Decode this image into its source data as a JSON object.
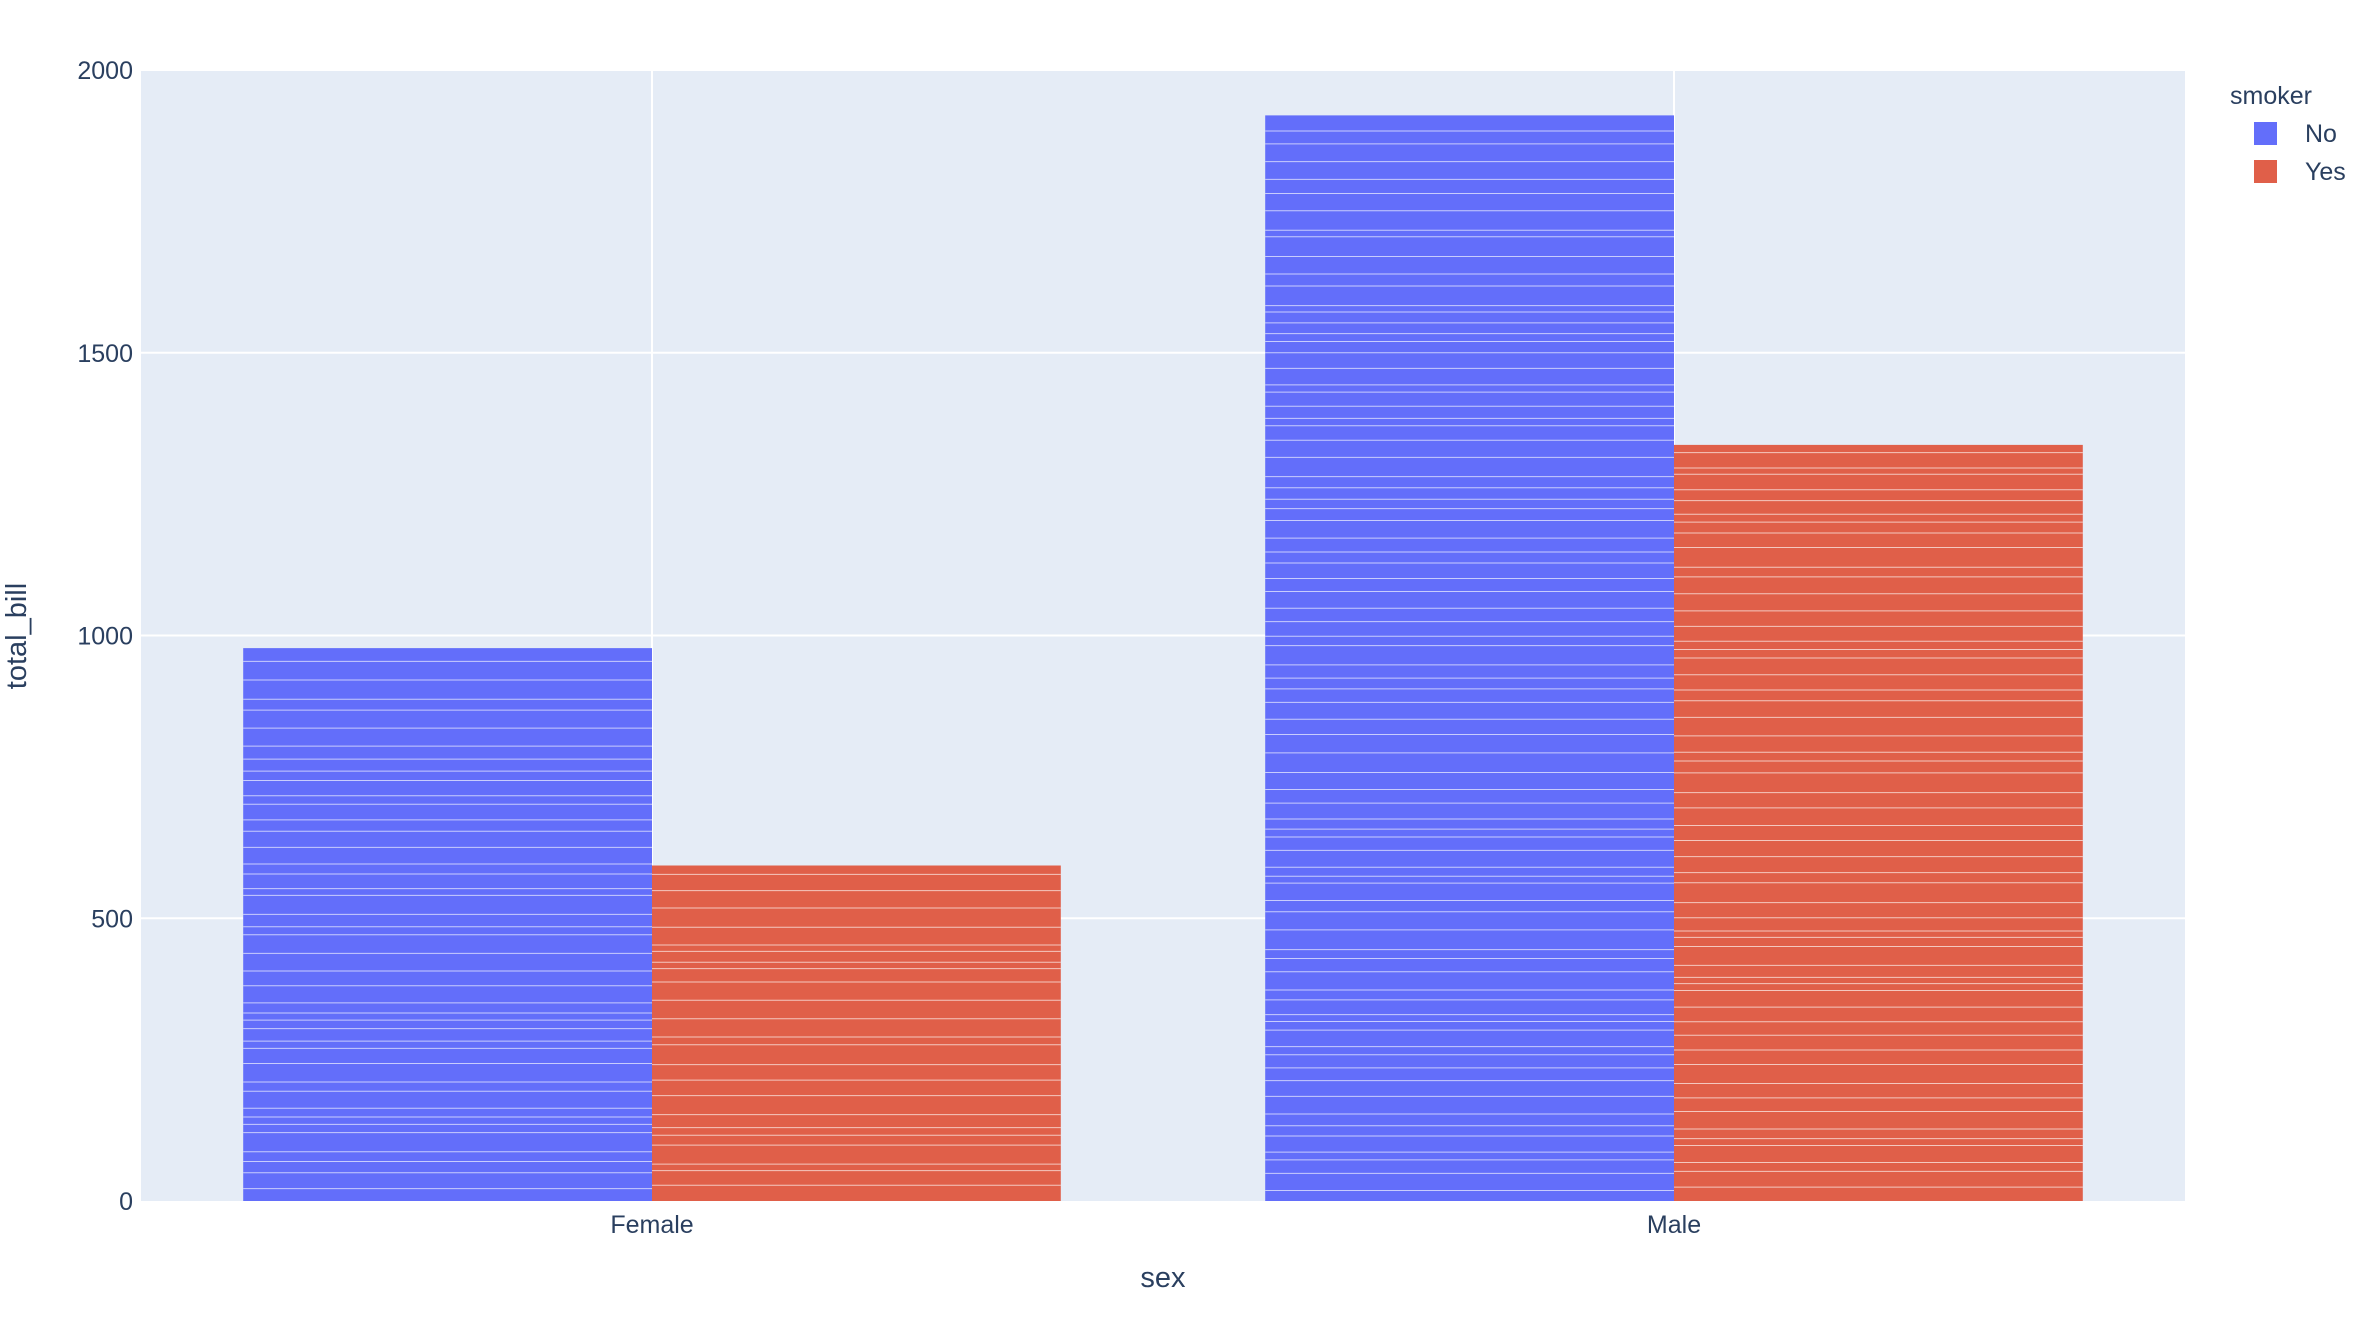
{
  "chart_data": {
    "type": "bar",
    "barmode": "group",
    "categories": [
      "Female",
      "Male"
    ],
    "series": [
      {
        "name": "No",
        "color": "#636efa",
        "values": [
          977.68,
          1919.75
        ]
      },
      {
        "name": "Yes",
        "color": "#ef553b",
        "values": [
          593.27,
          1337.07
        ]
      }
    ],
    "xlabel": "sex",
    "ylabel": "total_bill",
    "ylim": [
      0,
      2000
    ],
    "yticks": [
      0,
      500,
      1000,
      1500,
      2000
    ],
    "yticklabels": [
      "0",
      "500",
      "1000",
      "1500",
      "2000"
    ],
    "grid": true,
    "legend": {
      "title": "smoker",
      "placement": "top-right"
    },
    "colors": {
      "plot_background": "#e5ecf6",
      "gridline": "#ffffff",
      "bar_fill_no": "#636efa",
      "bar_fill_yes": "#e05f49"
    }
  }
}
